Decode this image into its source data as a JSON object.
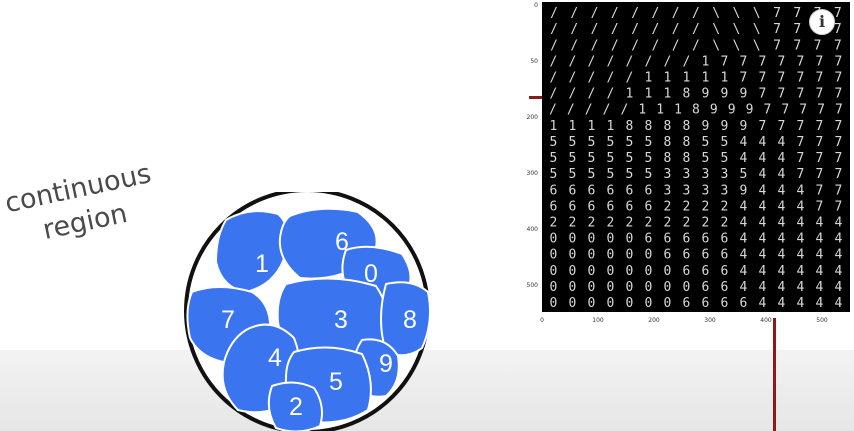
{
  "region_label": {
    "line1": "continuous",
    "line2": "region"
  },
  "blobs": [
    {
      "digit": "1"
    },
    {
      "digit": "6"
    },
    {
      "digit": "0"
    },
    {
      "digit": "7"
    },
    {
      "digit": "3"
    },
    {
      "digit": "8"
    },
    {
      "digit": "4"
    },
    {
      "digit": "9"
    },
    {
      "digit": "5"
    },
    {
      "digit": "2"
    }
  ],
  "colors": {
    "blob_fill": "#3a74ee",
    "blob_stroke": "#ffffff",
    "circle_stroke": "#111111",
    "marker_red": "#8b1a1a"
  },
  "manifold_plot": {
    "x_ticks": [
      "0",
      "100",
      "200",
      "300",
      "400",
      "500"
    ],
    "y_ticks": [
      "0",
      "50",
      "200",
      "300",
      "400",
      "500"
    ],
    "grid_rows": [
      "////////\\\\\\7777",
      "////////\\\\\\7777",
      "////////\\\\\\7777",
      "////////17777777",
      "/////11111777777",
      "////111899977777",
      "/////111899977777",
      "1111888899977777",
      "5555558855444777",
      "5555558855444777",
      "5555553333544777",
      "6666663333944477",
      "6666662222444477",
      "2222222222444444",
      "0000066666444444",
      "0000006666444444",
      "0000000666444444",
      "0000000066444444",
      "0000000666644444"
    ]
  },
  "info_icon": {
    "glyph": "i"
  }
}
